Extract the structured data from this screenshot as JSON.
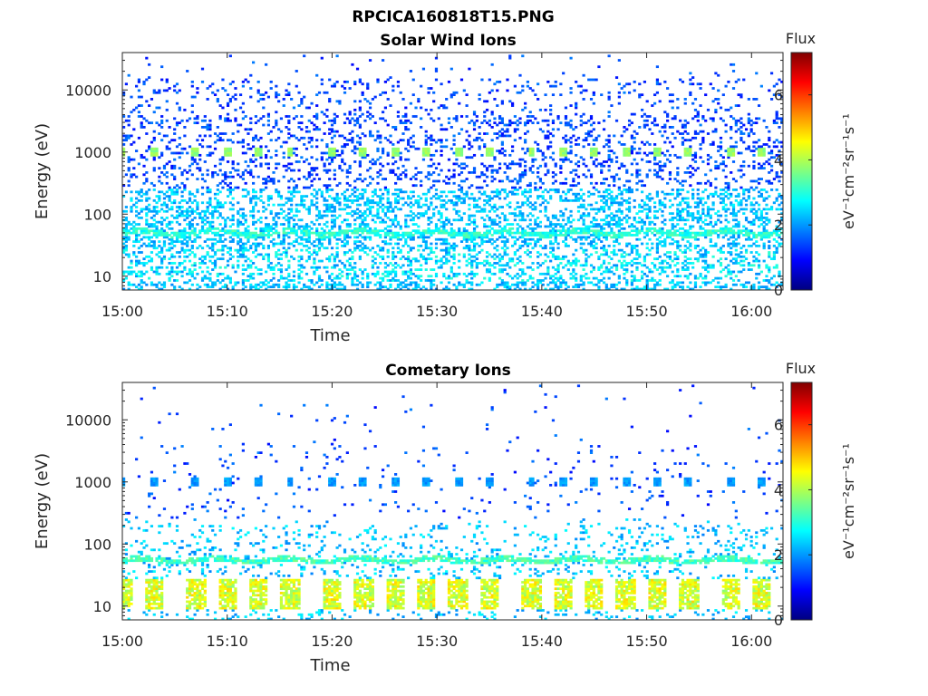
{
  "figure": {
    "title": "RPCICA160818T15.PNG"
  },
  "chart_data": [
    {
      "type": "heatmap",
      "title": "Solar Wind Ions",
      "xlabel": "Time",
      "ylabel": "Energy (eV)",
      "yscale": "log",
      "ylim": [
        6,
        40000
      ],
      "xlim_minutes_since_15_00": [
        0,
        63
      ],
      "x_ticks": [
        "15:00",
        "15:10",
        "15:20",
        "15:30",
        "15:40",
        "15:50",
        "16:00"
      ],
      "y_ticks": [
        "10",
        "100",
        "1000",
        "10000"
      ],
      "colorbar": {
        "title": "Flux",
        "label": "eV⁻¹cm⁻²sr⁻¹s⁻¹",
        "range": [
          0,
          7.3
        ],
        "ticks": [
          "0",
          "2",
          "4",
          "6"
        ]
      },
      "features": {
        "band_energy_eV": 50,
        "band_level": 3,
        "low_energy_range_eV": [
          8,
          28
        ],
        "low_energy_level": 2.5,
        "sweep_energy_eV": 1000,
        "sweep_level": 3.8,
        "sweep_times": [
          "15:00",
          "15:03",
          "15:07",
          "15:10",
          "15:13",
          "15:16",
          "15:20",
          "15:23",
          "15:26",
          "15:29",
          "15:32",
          "15:35",
          "15:39",
          "15:42",
          "15:45",
          "15:48",
          "15:51",
          "15:54",
          "15:58",
          "16:01"
        ]
      }
    },
    {
      "type": "heatmap",
      "title": "Cometary Ions",
      "xlabel": "Time",
      "ylabel": "Energy (eV)",
      "yscale": "log",
      "ylim": [
        6,
        40000
      ],
      "xlim_minutes_since_15_00": [
        0,
        63
      ],
      "x_ticks": [
        "15:00",
        "15:10",
        "15:20",
        "15:30",
        "15:40",
        "15:50",
        "16:00"
      ],
      "y_ticks": [
        "10",
        "100",
        "1000",
        "10000"
      ],
      "colorbar": {
        "title": "Flux",
        "label": "eV⁻¹cm⁻²sr⁻¹s⁻¹",
        "range": [
          0,
          7.3
        ],
        "ticks": [
          "0",
          "2",
          "4",
          "6"
        ]
      },
      "features": {
        "band_energy_eV": 55,
        "band_level": 3.2,
        "low_energy_range_eV": [
          9,
          28
        ],
        "low_energy_level": 4.3,
        "sweep_energy_eV": 1000,
        "sweep_level": 2,
        "sweep_times": [
          "15:00",
          "15:03",
          "15:07",
          "15:10",
          "15:13",
          "15:16",
          "15:20",
          "15:23",
          "15:26",
          "15:29",
          "15:32",
          "15:35",
          "15:39",
          "15:42",
          "15:45",
          "15:48",
          "15:51",
          "15:54",
          "15:58",
          "16:01"
        ]
      }
    }
  ]
}
